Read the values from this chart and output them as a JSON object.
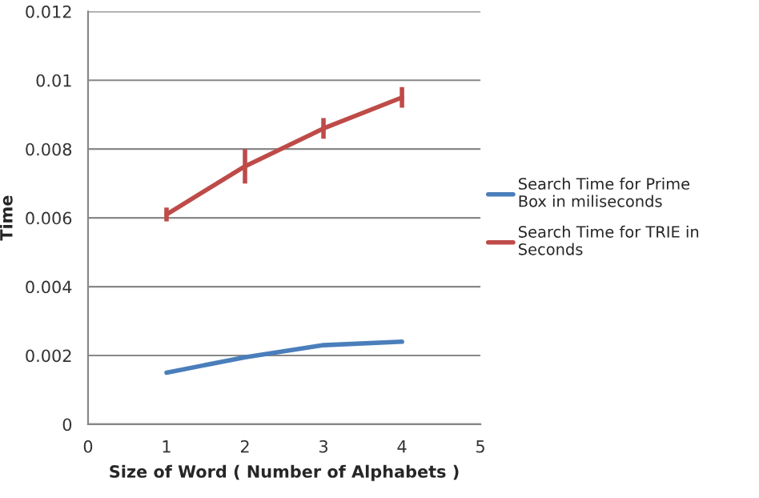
{
  "chart_data": {
    "type": "line",
    "xlabel": "Size of Word ( Number of Alphabets )",
    "ylabel": "Time",
    "xlim": [
      0,
      5
    ],
    "xticks": [
      0,
      1,
      2,
      3,
      4,
      5
    ],
    "ylim": [
      0,
      0.012
    ],
    "yticks": [
      0,
      {
        "value": 0.002,
        "label": "0.002"
      },
      {
        "value": 0.004,
        "label": "0.004"
      },
      {
        "value": 0.006,
        "label": "0.006"
      },
      {
        "value": 0.008,
        "label": "0.008"
      },
      {
        "value": 0.01,
        "label": "0.01"
      },
      {
        "value": 0.012,
        "label": "0.012"
      }
    ],
    "grid": "y",
    "legend": "right",
    "marker": "none",
    "line_style": "solid",
    "x": [
      1,
      2,
      3,
      4
    ],
    "series": [
      {
        "name": "Search Time for Prime Box in miliseconds",
        "color": "#4a7ebb",
        "values": [
          0.0015,
          0.00195,
          0.0023,
          0.0024
        ]
      },
      {
        "name": "Search Time for TRIE in Seconds",
        "color": "#be4b48",
        "values": [
          0.0061,
          0.0075,
          0.0086,
          0.0095
        ],
        "errors": [
          0.0002,
          0.0005,
          0.0003,
          0.0003
        ]
      }
    ]
  }
}
